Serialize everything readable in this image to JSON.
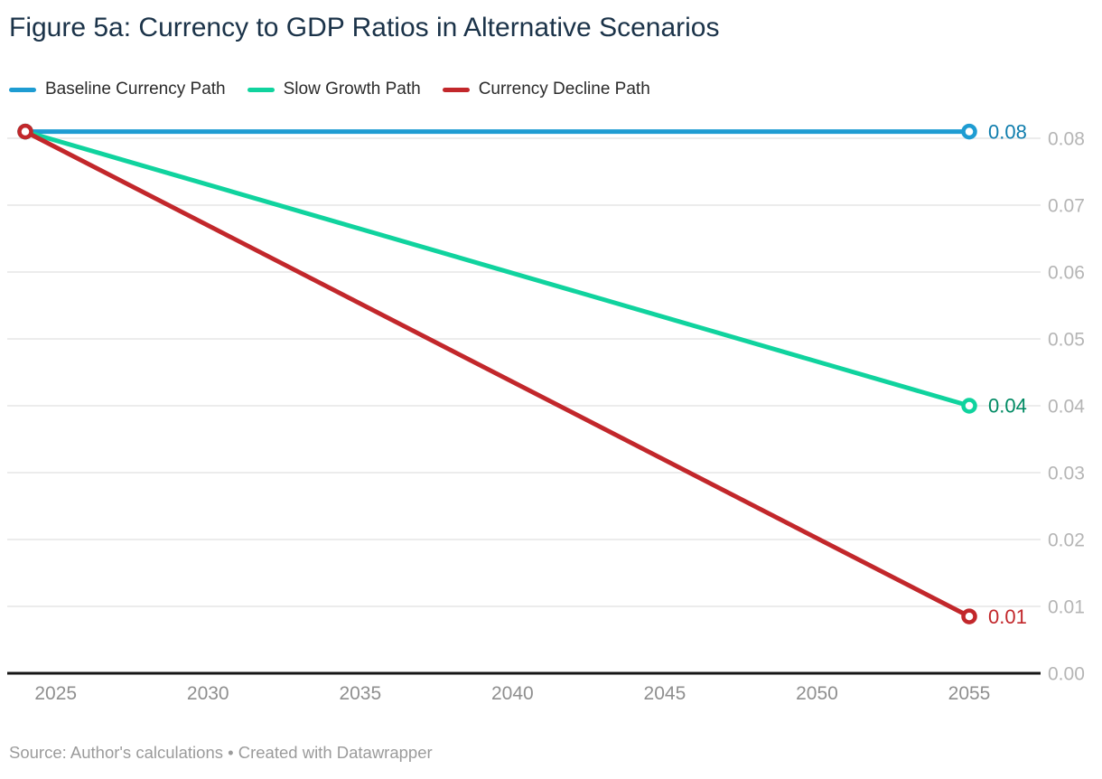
{
  "title": "Figure 5a: Currency to GDP Ratios in Alternative Scenarios",
  "footer": {
    "source_label": "Source:",
    "source": "Author's calculations",
    "separator": "•",
    "attribution": "Created with Datawrapper"
  },
  "colors": {
    "background": "#ffffff",
    "title": "#1b3349",
    "legend_text": "#2b2b2b",
    "grid": "#ececec",
    "axis": "#151515",
    "x_tick_label": "#8f8f8f",
    "y_tick_label": "#b5b5b5",
    "footer_text": "#9b9b9b"
  },
  "chart_data": {
    "type": "line",
    "title": "Figure 5a: Currency to GDP Ratios in Alternative Scenarios",
    "xlabel": "",
    "ylabel": "",
    "x": [
      2024,
      2055
    ],
    "xlim": [
      2024,
      2055
    ],
    "ylim": [
      0,
      0.085
    ],
    "grid": "horizontal",
    "legend_position": "top",
    "x_ticks": [
      {
        "value": 2025,
        "label": "2025"
      },
      {
        "value": 2030,
        "label": "2030"
      },
      {
        "value": 2035,
        "label": "2035"
      },
      {
        "value": 2040,
        "label": "2040"
      },
      {
        "value": 2045,
        "label": "2045"
      },
      {
        "value": 2050,
        "label": "2050"
      },
      {
        "value": 2055,
        "label": "2055"
      }
    ],
    "y_ticks": [
      {
        "value": 0.0,
        "label": "0.00"
      },
      {
        "value": 0.01,
        "label": "0.01"
      },
      {
        "value": 0.02,
        "label": "0.02"
      },
      {
        "value": 0.03,
        "label": "0.03"
      },
      {
        "value": 0.04,
        "label": "0.04"
      },
      {
        "value": 0.05,
        "label": "0.05"
      },
      {
        "value": 0.06,
        "label": "0.06"
      },
      {
        "value": 0.07,
        "label": "0.07"
      },
      {
        "value": 0.08,
        "label": "0.08"
      }
    ],
    "series": [
      {
        "name": "Baseline Currency Path",
        "color": "#1e9cd2",
        "label_color": "#0f7dad",
        "values": [
          0.081,
          0.081
        ],
        "end_label": "0.08"
      },
      {
        "name": "Slow Growth Path",
        "color": "#10d39e",
        "label_color": "#008a63",
        "values": [
          0.081,
          0.04
        ],
        "end_label": "0.04"
      },
      {
        "name": "Currency Decline Path",
        "color": "#c2272b",
        "label_color": "#c2272b",
        "values": [
          0.081,
          0.0085
        ],
        "end_label": "0.01"
      }
    ]
  }
}
